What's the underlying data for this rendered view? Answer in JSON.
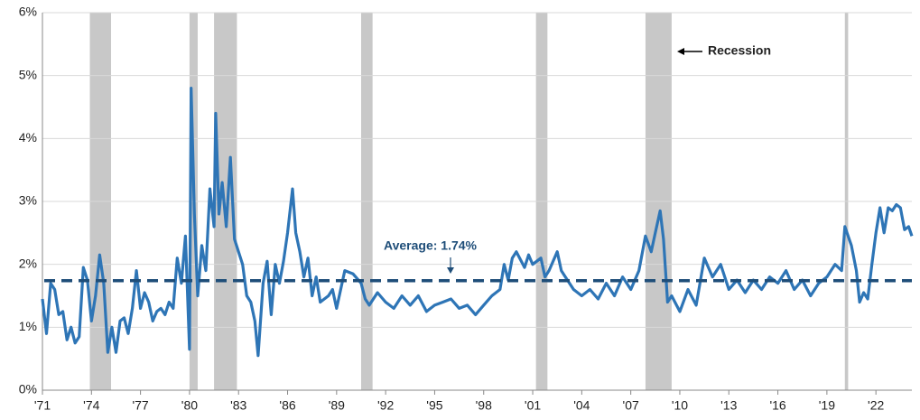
{
  "chart_data": {
    "type": "line",
    "recession_label": "Recession",
    "average_label": "Average: 1.74%",
    "average": 1.74,
    "average_color": "#1f4e79",
    "recession_color": "#c8c8c8",
    "recessions": [
      {
        "start": 1973.9,
        "end": 1975.2
      },
      {
        "start": 1980.0,
        "end": 1980.5
      },
      {
        "start": 1981.5,
        "end": 1982.9
      },
      {
        "start": 1990.5,
        "end": 1991.2
      },
      {
        "start": 2001.2,
        "end": 2001.9
      },
      {
        "start": 2007.9,
        "end": 2009.5
      },
      {
        "start": 2020.1,
        "end": 2020.3
      }
    ],
    "x": [
      1971.0,
      1971.25,
      1971.5,
      1971.75,
      1972.0,
      1972.25,
      1972.5,
      1972.75,
      1973.0,
      1973.25,
      1973.5,
      1973.75,
      1974.0,
      1974.25,
      1974.5,
      1974.75,
      1975.0,
      1975.25,
      1975.5,
      1975.75,
      1976.0,
      1976.25,
      1976.5,
      1976.75,
      1977.0,
      1977.25,
      1977.5,
      1977.75,
      1978.0,
      1978.25,
      1978.5,
      1978.75,
      1979.0,
      1979.25,
      1979.5,
      1979.75,
      1980.0,
      1980.1,
      1980.3,
      1980.5,
      1980.75,
      1981.0,
      1981.25,
      1981.5,
      1981.6,
      1981.8,
      1982.0,
      1982.25,
      1982.5,
      1982.75,
      1983.0,
      1983.25,
      1983.5,
      1983.75,
      1984.0,
      1984.2,
      1984.5,
      1984.75,
      1985.0,
      1985.25,
      1985.5,
      1985.75,
      1986.0,
      1986.3,
      1986.5,
      1986.75,
      1987.0,
      1987.25,
      1987.5,
      1987.75,
      1988.0,
      1988.5,
      1988.75,
      1989.0,
      1989.5,
      1990.0,
      1990.5,
      1990.75,
      1991.0,
      1991.5,
      1992.0,
      1992.5,
      1993.0,
      1993.5,
      1994.0,
      1994.5,
      1995.0,
      1995.5,
      1996.0,
      1996.5,
      1997.0,
      1997.5,
      1998.0,
      1998.5,
      1999.0,
      1999.25,
      1999.5,
      1999.75,
      2000.0,
      2000.5,
      2000.75,
      2001.0,
      2001.5,
      2001.75,
      2002.0,
      2002.5,
      2002.75,
      2003.0,
      2003.5,
      2004.0,
      2004.5,
      2005.0,
      2005.5,
      2006.0,
      2006.5,
      2007.0,
      2007.5,
      2007.9,
      2008.25,
      2008.5,
      2008.8,
      2009.0,
      2009.25,
      2009.5,
      2010.0,
      2010.5,
      2011.0,
      2011.5,
      2012.0,
      2012.5,
      2013.0,
      2013.5,
      2014.0,
      2014.5,
      2015.0,
      2015.5,
      2016.0,
      2016.5,
      2017.0,
      2017.5,
      2018.0,
      2018.5,
      2019.0,
      2019.5,
      2019.9,
      2020.1,
      2020.5,
      2020.8,
      2021.0,
      2021.25,
      2021.5,
      2021.75,
      2022.0,
      2022.25,
      2022.5,
      2022.75,
      2023.0,
      2023.25,
      2023.5,
      2023.75,
      2024.0,
      2024.2
    ],
    "series": [
      {
        "color": "#2e75b6",
        "values": [
          1.45,
          0.9,
          1.7,
          1.6,
          1.2,
          1.25,
          0.8,
          1.0,
          0.75,
          0.85,
          1.95,
          1.75,
          1.1,
          1.5,
          2.15,
          1.7,
          0.6,
          1.0,
          0.6,
          1.1,
          1.15,
          0.9,
          1.3,
          1.9,
          1.3,
          1.55,
          1.4,
          1.1,
          1.25,
          1.3,
          1.2,
          1.4,
          1.3,
          2.1,
          1.7,
          2.45,
          0.65,
          4.8,
          2.8,
          1.5,
          2.3,
          1.9,
          3.2,
          2.6,
          4.4,
          2.8,
          3.3,
          2.6,
          3.7,
          2.4,
          2.2,
          2.0,
          1.5,
          1.4,
          1.1,
          0.55,
          1.7,
          2.05,
          1.2,
          2.0,
          1.7,
          2.05,
          2.5,
          3.2,
          2.5,
          2.2,
          1.8,
          2.1,
          1.5,
          1.8,
          1.4,
          1.5,
          1.6,
          1.3,
          1.9,
          1.85,
          1.7,
          1.45,
          1.35,
          1.55,
          1.4,
          1.3,
          1.5,
          1.35,
          1.5,
          1.25,
          1.35,
          1.4,
          1.45,
          1.3,
          1.35,
          1.2,
          1.35,
          1.5,
          1.6,
          2.0,
          1.75,
          2.1,
          2.2,
          1.95,
          2.15,
          2.0,
          2.1,
          1.8,
          1.9,
          2.2,
          1.9,
          1.8,
          1.6,
          1.5,
          1.6,
          1.45,
          1.7,
          1.5,
          1.8,
          1.6,
          1.9,
          2.45,
          2.2,
          2.5,
          2.85,
          2.4,
          1.4,
          1.5,
          1.25,
          1.6,
          1.35,
          2.1,
          1.8,
          2.0,
          1.6,
          1.75,
          1.55,
          1.75,
          1.6,
          1.8,
          1.7,
          1.9,
          1.6,
          1.75,
          1.5,
          1.7,
          1.8,
          2.0,
          1.9,
          2.6,
          2.3,
          1.9,
          1.4,
          1.55,
          1.45,
          2.0,
          2.5,
          2.9,
          2.5,
          2.9,
          2.85,
          2.95,
          2.9,
          2.55,
          2.6,
          2.45
        ]
      }
    ],
    "xlim": [
      1971,
      2024.2
    ],
    "xticks": [
      {
        "value": 1971,
        "label": "'71"
      },
      {
        "value": 1974,
        "label": "'74"
      },
      {
        "value": 1977,
        "label": "'77"
      },
      {
        "value": 1980,
        "label": "'80"
      },
      {
        "value": 1983,
        "label": "'83"
      },
      {
        "value": 1986,
        "label": "'86"
      },
      {
        "value": 1989,
        "label": "'89"
      },
      {
        "value": 1992,
        "label": "'92"
      },
      {
        "value": 1995,
        "label": "'95"
      },
      {
        "value": 1998,
        "label": "'98"
      },
      {
        "value": 2001,
        "label": "'01"
      },
      {
        "value": 2004,
        "label": "'04"
      },
      {
        "value": 2007,
        "label": "'07"
      },
      {
        "value": 2010,
        "label": "'10"
      },
      {
        "value": 2013,
        "label": "'13"
      },
      {
        "value": 2016,
        "label": "'16"
      },
      {
        "value": 2019,
        "label": "'19"
      },
      {
        "value": 2022,
        "label": "'22"
      }
    ],
    "ylim": [
      0,
      6
    ],
    "yticks": [
      {
        "value": 0,
        "label": "0%"
      },
      {
        "value": 1,
        "label": "1%"
      },
      {
        "value": 2,
        "label": "2%"
      },
      {
        "value": 3,
        "label": "3%"
      },
      {
        "value": 4,
        "label": "4%"
      },
      {
        "value": 5,
        "label": "5%"
      },
      {
        "value": 6,
        "label": "6%"
      }
    ],
    "grid": true
  }
}
